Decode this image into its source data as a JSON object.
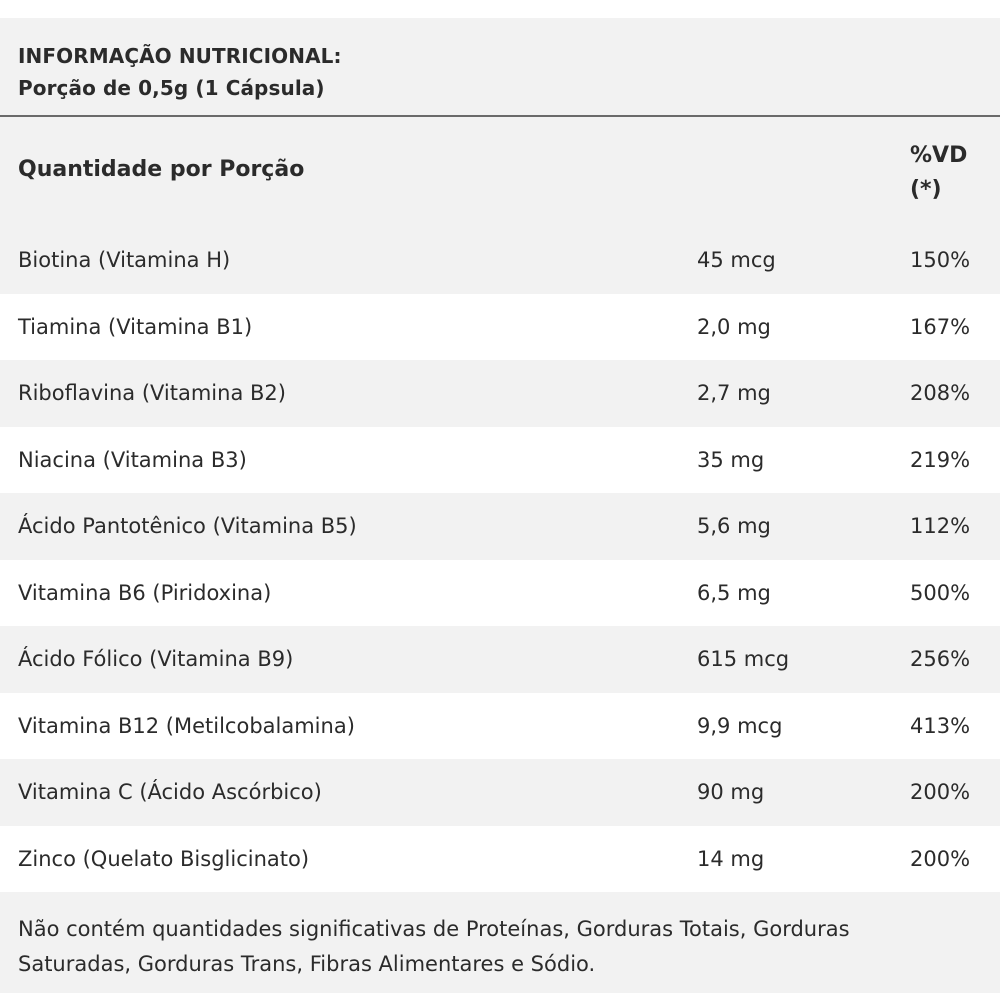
{
  "header": {
    "title": "INFORMAÇÃO NUTRICIONAL:",
    "portion": "Porção de 0,5g (1 Cápsula)"
  },
  "columns": {
    "quantity_label": "Quantidade por Porção",
    "vd_label_line1": "%VD",
    "vd_label_line2": "(*)"
  },
  "rows": [
    {
      "name": "Biotina (Vitamina H)",
      "amount": "45 mcg",
      "vd": "150%"
    },
    {
      "name": "Tiamina (Vitamina B1)",
      "amount": "2,0 mg",
      "vd": "167%"
    },
    {
      "name": "Riboflavina (Vitamina B2)",
      "amount": "2,7 mg",
      "vd": "208%"
    },
    {
      "name": "Niacina (Vitamina B3)",
      "amount": "35 mg",
      "vd": "219%"
    },
    {
      "name": "Ácido Pantotênico (Vitamina B5)",
      "amount": "5,6 mg",
      "vd": "112%"
    },
    {
      "name": "Vitamina B6 (Piridoxina)",
      "amount": "6,5 mg",
      "vd": "500%"
    },
    {
      "name": "Ácido Fólico (Vitamina B9)",
      "amount": "615 mcg",
      "vd": "256%"
    },
    {
      "name": "Vitamina B12 (Metilcobalamina)",
      "amount": "9,9 mcg",
      "vd": "413%"
    },
    {
      "name": "Vitamina C (Ácido Ascórbico)",
      "amount": "90 mg",
      "vd": "200%"
    },
    {
      "name": "Zinco (Quelato Bisglicinato)",
      "amount": "14 mg",
      "vd": "200%"
    }
  ],
  "footer": {
    "line1": "Não contém quantidades significativas de Proteínas, Gorduras Totais, Gorduras",
    "line2": "Saturadas, Gorduras Trans, Fibras Alimentares e Sódio."
  },
  "colors": {
    "panel_background": "#f2f2f2",
    "alt_row_background": "#ffffff",
    "text": "#2b2b2b",
    "divider": "#6a6a6a"
  }
}
